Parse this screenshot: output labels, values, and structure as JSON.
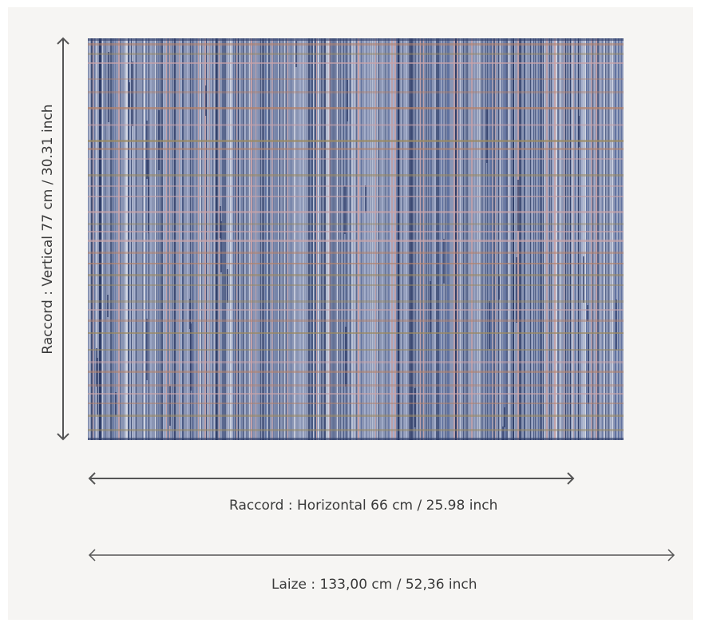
{
  "repeat": {
    "vertical_label": "Raccord : Vertical 77 cm / 30.31 inch",
    "horizontal_label": "Raccord : Horizontal 66 cm / 25.98 inch"
  },
  "width": {
    "label": "Laize : 133,00 cm / 52,36 inch"
  },
  "colors": {
    "background": "#f6f5f3",
    "text": "#3a3a3a",
    "arrow": "#555555",
    "fabric_base": "#8a95b4",
    "fabric_dark": "#2c3b66",
    "fabric_light": "#d9dde8",
    "fabric_rust": "#b5826a",
    "fabric_pink": "#c9a3a8"
  }
}
